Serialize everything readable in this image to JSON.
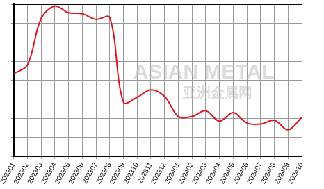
{
  "chart_data": {
    "type": "line",
    "categories": [
      "202301",
      "202302",
      "202303",
      "202304",
      "202305",
      "202306",
      "202307",
      "202308",
      "202309",
      "202310",
      "202311",
      "202312",
      "202401",
      "202402",
      "202403",
      "202404",
      "202405",
      "202406",
      "202407",
      "202408",
      "202409",
      "202410"
    ],
    "values": [
      4.35,
      4.8,
      7.25,
      7.9,
      7.55,
      7.5,
      7.2,
      7.3,
      2.85,
      3.1,
      3.5,
      3.15,
      2.1,
      2.1,
      2.4,
      1.85,
      2.3,
      1.75,
      1.7,
      1.9,
      1.4,
      2.05
    ],
    "color": "#e0141e",
    "ylim": [
      0,
      8
    ],
    "yticks": [
      0,
      1,
      2,
      3,
      4,
      5,
      6,
      7,
      8
    ],
    "grid": true,
    "tick_labels": "x",
    "annotations": [
      "ASIAN METAL",
      "亚洲金属网"
    ]
  }
}
